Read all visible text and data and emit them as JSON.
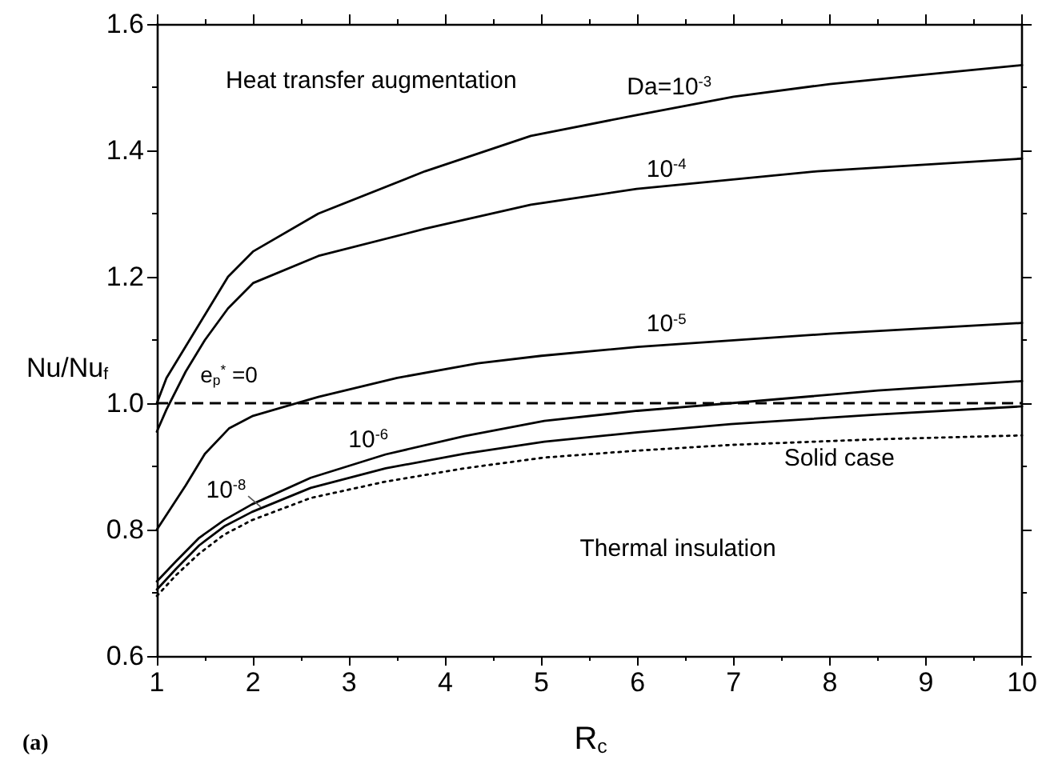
{
  "chart_data": {
    "type": "line",
    "xlabel": "R$_{c}$",
    "ylabel": "Nu/Nu$_{f}$",
    "xlim": [
      1,
      10
    ],
    "xticks": [
      1,
      2,
      3,
      4,
      5,
      6,
      7,
      8,
      9,
      10
    ],
    "ylim": [
      0.6,
      1.6
    ],
    "yticks": [
      0.6,
      0.8,
      {
        "value": 1.0,
        "label": "1.0"
      },
      1.2,
      1.4,
      1.6
    ],
    "grid": false,
    "legend": false,
    "marker": "none",
    "ref_lines": [
      {
        "axis": "y",
        "value": 1.0,
        "color": "#000000",
        "line_style": "dashed"
      }
    ],
    "annotations": [
      "Heat transfer augmentation",
      "Thermal insulation",
      "(a)",
      "e$_{p}$$^{*}$ =0"
    ],
    "series": [
      {
        "name": "Da=10$^{-3}$",
        "color": "#000000",
        "line_style": "solid",
        "x": [
          1,
          1.1,
          1.3,
          1.5,
          1.74,
          2.0,
          2.68,
          3.79,
          4.89,
          5.99,
          7,
          8,
          9,
          10
        ],
        "values": [
          1.0,
          1.04,
          1.09,
          1.14,
          1.2,
          1.24,
          1.3,
          1.367,
          1.423,
          1.456,
          1.485,
          1.505,
          1.52,
          1.535
        ]
      },
      {
        "name": "10$^{-4}$",
        "color": "#000000",
        "line_style": "solid",
        "x": [
          1,
          1.1,
          1.3,
          1.5,
          1.74,
          2.0,
          2.68,
          3.79,
          4.89,
          5.99,
          7.87,
          10
        ],
        "values": [
          0.955,
          0.99,
          1.05,
          1.1,
          1.15,
          1.19,
          1.233,
          1.276,
          1.314,
          1.339,
          1.367,
          1.387
        ]
      },
      {
        "name": "10$^{-5}$",
        "color": "#000000",
        "line_style": "solid",
        "x": [
          1,
          1.3,
          1.5,
          1.75,
          2.0,
          2.68,
          3.5,
          4.34,
          5.0,
          6.0,
          8.0,
          10
        ],
        "values": [
          0.8,
          0.87,
          0.92,
          0.96,
          0.98,
          1.01,
          1.04,
          1.063,
          1.075,
          1.089,
          1.11,
          1.127
        ]
      },
      {
        "name": "10$^{-6}$",
        "color": "#000000",
        "line_style": "solid",
        "x": [
          1,
          1.2,
          1.44,
          1.7,
          1.99,
          2.6,
          3.38,
          4.2,
          5.03,
          6.0,
          6.97,
          8.5,
          10
        ],
        "values": [
          0.718,
          0.75,
          0.787,
          0.815,
          0.84,
          0.882,
          0.919,
          0.948,
          0.972,
          0.988,
          1.0,
          1.02,
          1.035
        ]
      },
      {
        "name": "10$^{-8}$",
        "color": "#000000",
        "line_style": "solid",
        "x": [
          1,
          1.2,
          1.44,
          1.7,
          1.99,
          2.6,
          3.38,
          4.2,
          5.03,
          6.0,
          6.97,
          8.5,
          10
        ],
        "values": [
          0.705,
          0.738,
          0.775,
          0.805,
          0.828,
          0.866,
          0.897,
          0.92,
          0.939,
          0.954,
          0.967,
          0.982,
          0.995
        ]
      },
      {
        "name": "Solid case",
        "color": "#000000",
        "line_style": "dotted",
        "x": [
          1,
          1.2,
          1.44,
          1.7,
          1.99,
          2.6,
          3.38,
          4.2,
          5.03,
          6.0,
          6.97,
          8.5,
          10
        ],
        "values": [
          0.695,
          0.728,
          0.762,
          0.792,
          0.815,
          0.85,
          0.876,
          0.897,
          0.914,
          0.925,
          0.934,
          0.943,
          0.949
        ]
      }
    ]
  }
}
